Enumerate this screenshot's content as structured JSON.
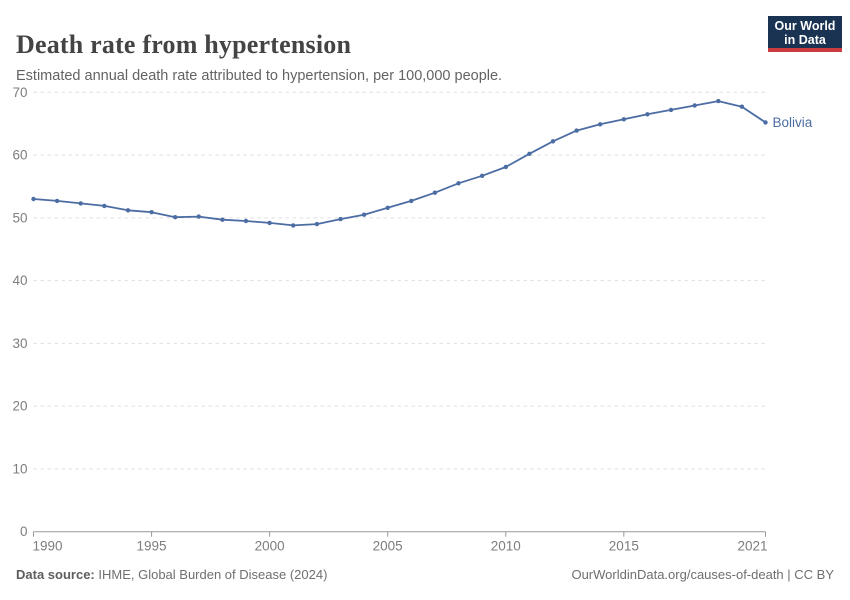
{
  "header": {
    "title": "Death rate from hypertension",
    "subtitle": "Estimated annual death rate attributed to hypertension, per 100,000 people.",
    "logo": {
      "line1": "Our World",
      "line2": "in Data",
      "bg_color": "#1b3353",
      "accent_color": "#ce3b3e"
    }
  },
  "chart_data": {
    "type": "line",
    "title": "Death rate from hypertension",
    "xlabel": "",
    "ylabel": "",
    "xlim": [
      1990,
      2021
    ],
    "ylim": [
      0,
      70
    ],
    "x_ticks": [
      1990,
      1995,
      2000,
      2005,
      2010,
      2015,
      2021
    ],
    "y_ticks": [
      0,
      10,
      20,
      30,
      40,
      50,
      60,
      70
    ],
    "grid": "horizontal-dashed",
    "legend_position": "end-of-line-label",
    "series": [
      {
        "name": "Bolivia",
        "color": "#4c6da4",
        "x": [
          1990,
          1991,
          1992,
          1993,
          1994,
          1995,
          1996,
          1997,
          1998,
          1999,
          2000,
          2001,
          2002,
          2003,
          2004,
          2005,
          2006,
          2007,
          2008,
          2009,
          2010,
          2011,
          2012,
          2013,
          2014,
          2015,
          2016,
          2017,
          2018,
          2019,
          2020,
          2021
        ],
        "values": [
          53.0,
          52.7,
          52.3,
          51.9,
          51.2,
          50.9,
          50.1,
          50.2,
          49.7,
          49.5,
          49.2,
          48.8,
          49.0,
          49.8,
          50.5,
          51.6,
          52.7,
          54.0,
          55.5,
          56.7,
          58.1,
          60.2,
          62.2,
          63.9,
          64.9,
          65.7,
          66.5,
          67.2,
          67.9,
          68.6,
          67.7,
          65.2
        ]
      }
    ],
    "style": {
      "grid_color": "#e0e0e0",
      "axis_color": "#999999",
      "tick_label_color": "#7d7d7d",
      "marker_radius": 2.2
    }
  },
  "footer": {
    "source_label": "Data source:",
    "source_value": " IHME, Global Burden of Disease (2024)",
    "rights": "OurWorldinData.org/causes-of-death | CC BY"
  }
}
